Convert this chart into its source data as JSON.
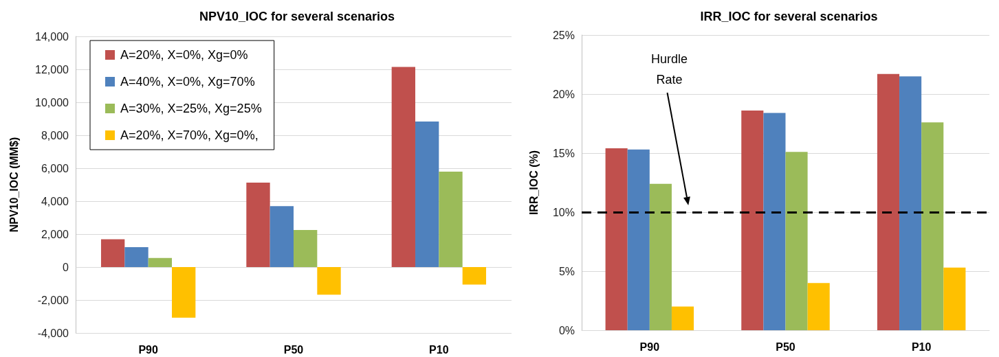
{
  "chart_data": [
    {
      "type": "bar",
      "title": "NPV10_IOC for several scenarios",
      "ylabel": "NPV10_IOC (MM$)",
      "categories": [
        "P90",
        "P50",
        "P10"
      ],
      "series": [
        {
          "name": "A=20%, X=0%, Xg=0%",
          "color": "#c0504d",
          "values": [
            1690,
            5120,
            12150
          ]
        },
        {
          "name": "A=40%, X=0%, Xg=70%",
          "color": "#4f81bd",
          "values": [
            1210,
            3700,
            8830
          ]
        },
        {
          "name": "A=30%, X=25%, Xg=25%",
          "color": "#9bbb59",
          "values": [
            550,
            2250,
            5790
          ]
        },
        {
          "name": "A=20%, X=70%, Xg=0%,",
          "color": "#ffc000",
          "values": [
            -3070,
            -1680,
            -1060
          ]
        }
      ],
      "ylim": [
        -4000,
        14000
      ],
      "yticks": [
        {
          "value": -4000,
          "label": "-4,000"
        },
        {
          "value": -2000,
          "label": "-2,000"
        },
        0,
        {
          "value": 2000,
          "label": "2,000"
        },
        {
          "value": 4000,
          "label": "4,000"
        },
        {
          "value": 6000,
          "label": "6,000"
        },
        {
          "value": 8000,
          "label": "8,000"
        },
        {
          "value": 10000,
          "label": "10,000"
        },
        {
          "value": 12000,
          "label": "12,000"
        },
        {
          "value": 14000,
          "label": "14,000"
        }
      ],
      "grid": "y",
      "legend": "top left"
    },
    {
      "type": "bar",
      "title": "IRR_IOC for several scenarios",
      "ylabel": "IRR_IOC (%)",
      "categories": [
        "P90",
        "P50",
        "P10"
      ],
      "series": [
        {
          "color": "#c0504d",
          "values": [
            15.4,
            18.6,
            21.7
          ]
        },
        {
          "color": "#4f81bd",
          "values": [
            15.3,
            18.4,
            21.5
          ]
        },
        {
          "color": "#9bbb59",
          "values": [
            12.4,
            15.1,
            17.6
          ]
        },
        {
          "color": "#ffc000",
          "values": [
            2.0,
            4.0,
            5.3
          ]
        }
      ],
      "ylim": [
        0,
        25
      ],
      "yticks": [
        {
          "value": 0,
          "label": "0%"
        },
        {
          "value": 5,
          "label": "5%"
        },
        {
          "value": 10,
          "label": "10%"
        },
        {
          "value": 15,
          "label": "15%"
        },
        {
          "value": 20,
          "label": "20%"
        },
        {
          "value": 25,
          "label": "25%"
        }
      ],
      "grid": "y",
      "ref_lines": [
        {
          "axis": "y",
          "value": 10,
          "label": "Hurdle Rate",
          "color": "#000000",
          "line_style": "dashed"
        }
      ]
    }
  ]
}
